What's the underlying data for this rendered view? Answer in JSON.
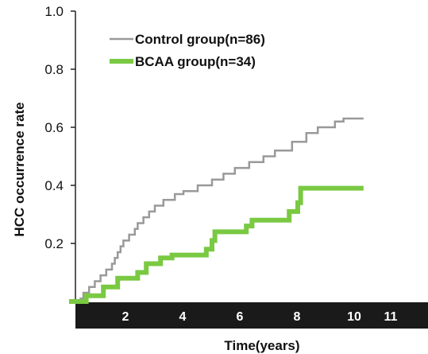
{
  "chart_data": {
    "type": "line",
    "step": true,
    "xlabel": "Time(years)",
    "ylabel": "HCC occurrence rate",
    "xlim": [
      0,
      12
    ],
    "ylim": [
      0,
      1.0
    ],
    "x_ticks": [
      2,
      4,
      6,
      8,
      10,
      11
    ],
    "y_tick_labels": [
      "1.0",
      "0.8",
      "0.6",
      "0.4",
      "0.2"
    ],
    "y_tick_values": [
      1.0,
      0.8,
      0.6,
      0.4,
      0.2
    ],
    "grid": false,
    "legend_position": "top-left",
    "series": [
      {
        "name": "Control group(n=86)",
        "color": "#999999",
        "points": [
          [
            0.0,
            0.0
          ],
          [
            0.4,
            0.01
          ],
          [
            0.5,
            0.03
          ],
          [
            0.7,
            0.05
          ],
          [
            0.9,
            0.07
          ],
          [
            1.1,
            0.09
          ],
          [
            1.3,
            0.11
          ],
          [
            1.5,
            0.13
          ],
          [
            1.6,
            0.15
          ],
          [
            1.7,
            0.17
          ],
          [
            1.8,
            0.19
          ],
          [
            1.9,
            0.21
          ],
          [
            2.1,
            0.23
          ],
          [
            2.3,
            0.25
          ],
          [
            2.4,
            0.27
          ],
          [
            2.6,
            0.29
          ],
          [
            2.8,
            0.31
          ],
          [
            3.0,
            0.33
          ],
          [
            3.3,
            0.35
          ],
          [
            3.7,
            0.37
          ],
          [
            4.0,
            0.38
          ],
          [
            4.5,
            0.4
          ],
          [
            5.0,
            0.42
          ],
          [
            5.4,
            0.44
          ],
          [
            5.8,
            0.46
          ],
          [
            6.3,
            0.48
          ],
          [
            6.8,
            0.5
          ],
          [
            7.2,
            0.52
          ],
          [
            7.8,
            0.55
          ],
          [
            8.3,
            0.58
          ],
          [
            8.7,
            0.6
          ],
          [
            9.3,
            0.62
          ],
          [
            9.6,
            0.63
          ],
          [
            10.3,
            0.63
          ]
        ]
      },
      {
        "name": "BCAA group(n=34)",
        "color": "#7ac943",
        "points": [
          [
            0.0,
            0.0
          ],
          [
            0.6,
            0.02
          ],
          [
            1.2,
            0.05
          ],
          [
            1.7,
            0.08
          ],
          [
            2.4,
            0.1
          ],
          [
            2.7,
            0.13
          ],
          [
            3.2,
            0.15
          ],
          [
            3.6,
            0.16
          ],
          [
            4.8,
            0.18
          ],
          [
            5.0,
            0.21
          ],
          [
            5.1,
            0.24
          ],
          [
            6.2,
            0.26
          ],
          [
            6.4,
            0.28
          ],
          [
            7.7,
            0.31
          ],
          [
            8.0,
            0.34
          ],
          [
            8.1,
            0.39
          ],
          [
            10.3,
            0.39
          ]
        ]
      }
    ]
  }
}
